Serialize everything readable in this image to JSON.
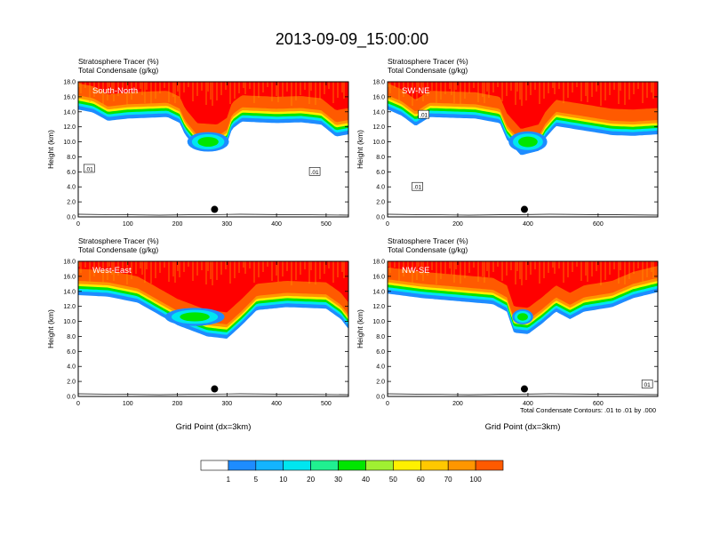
{
  "title": "2013-09-09_15:00:00",
  "colors": {
    "levels": [
      "#ffffff",
      "#1e8cff",
      "#14a0ff",
      "#00e6f0",
      "#20f090",
      "#00e600",
      "#a0f032",
      "#fff000",
      "#ffc800",
      "#ff9600",
      "#ff5a00",
      "#ff0000"
    ],
    "contour": "#000000",
    "marker": "#000000"
  },
  "colorbar": {
    "labels": [
      "1",
      "5",
      "10",
      "20",
      "30",
      "40",
      "50",
      "60",
      "70",
      "100"
    ]
  },
  "footnote": "Total Condensate Contours: .01 to .01 by .000",
  "chart_data": [
    {
      "type": "heatmap",
      "id": "south-north",
      "panel_label": "South-North",
      "subtitle_lines": [
        "Stratosphere Tracer   (%)",
        "Total Condensate   (g/kg)"
      ],
      "ylabel": "Height (km)",
      "xlabel": "",
      "xlim": [
        0,
        545
      ],
      "ylim": [
        0,
        18
      ],
      "xticks": [
        "0",
        "100",
        "200",
        "300",
        "400",
        "500"
      ],
      "yticks": [
        "0.0",
        "2.0",
        "4.0",
        "6.0",
        "8.0",
        "10.0",
        "12.0",
        "14.0",
        "16.0",
        "18.0"
      ],
      "marker": {
        "x": 275,
        "y": 1.0
      },
      "tropopause_base": [
        [
          0,
          14.8
        ],
        [
          30,
          14.4
        ],
        [
          60,
          13.3
        ],
        [
          100,
          13.6
        ],
        [
          180,
          13.8
        ],
        [
          205,
          13.0
        ],
        [
          215,
          11.5
        ],
        [
          240,
          9.5
        ],
        [
          280,
          9.3
        ],
        [
          300,
          10.2
        ],
        [
          310,
          12.2
        ],
        [
          330,
          13.2
        ],
        [
          400,
          13.0
        ],
        [
          450,
          13.1
        ],
        [
          490,
          12.8
        ],
        [
          520,
          11.2
        ],
        [
          545,
          11.5
        ]
      ],
      "cloud_lobe": {
        "x": 262,
        "y": 10.0,
        "rx": 42,
        "ry": 1.3
      },
      "contour_labels": [
        {
          "x": 22,
          "y": 6.4,
          "text": ".01"
        },
        {
          "x": 477,
          "y": 6.0,
          "text": ".01"
        }
      ]
    },
    {
      "type": "heatmap",
      "id": "sw-ne",
      "panel_label": "SW-NE",
      "subtitle_lines": [
        "Stratosphere Tracer   (%)",
        "Total Condensate   (g/kg)"
      ],
      "ylabel": "Height (km)",
      "xlabel": "",
      "xlim": [
        0,
        770
      ],
      "ylim": [
        0,
        18
      ],
      "xticks": [
        "0",
        "200",
        "400",
        "600"
      ],
      "yticks": [
        "0.0",
        "2.0",
        "4.0",
        "6.0",
        "8.0",
        "10.0",
        "12.0",
        "14.0",
        "16.0",
        "18.0"
      ],
      "marker": {
        "x": 390,
        "y": 1.0
      },
      "tropopause_base": [
        [
          0,
          14.8
        ],
        [
          40,
          14.0
        ],
        [
          80,
          12.6
        ],
        [
          120,
          13.8
        ],
        [
          250,
          13.6
        ],
        [
          320,
          13.0
        ],
        [
          340,
          10.8
        ],
        [
          380,
          8.7
        ],
        [
          430,
          9.3
        ],
        [
          450,
          11.0
        ],
        [
          480,
          12.6
        ],
        [
          560,
          12.0
        ],
        [
          640,
          11.4
        ],
        [
          700,
          11.3
        ],
        [
          770,
          11.5
        ]
      ],
      "cloud_lobe": {
        "x": 400,
        "y": 10.0,
        "rx": 55,
        "ry": 1.4
      },
      "contour_labels": [
        {
          "x": 103,
          "y": 13.6,
          "text": ".01"
        },
        {
          "x": 85,
          "y": 4.0,
          "text": ".01"
        }
      ]
    },
    {
      "type": "heatmap",
      "id": "west-east",
      "panel_label": "West-East",
      "subtitle_lines": [
        "Stratosphere Tracer   (%)",
        "Total Condensate   (g/kg)"
      ],
      "ylabel": "Height (km)",
      "xlabel": "Grid Point (dx=3km)",
      "xlim": [
        0,
        545
      ],
      "ylim": [
        0,
        18
      ],
      "xticks": [
        "0",
        "100",
        "200",
        "300",
        "400",
        "500"
      ],
      "yticks": [
        "0.0",
        "2.0",
        "4.0",
        "6.0",
        "8.0",
        "10.0",
        "12.0",
        "14.0",
        "16.0",
        "18.0"
      ],
      "marker": {
        "x": 275,
        "y": 1.0
      },
      "tropopause_base": [
        [
          0,
          14.0
        ],
        [
          60,
          13.8
        ],
        [
          120,
          13.0
        ],
        [
          160,
          11.5
        ],
        [
          200,
          10.0
        ],
        [
          260,
          8.5
        ],
        [
          300,
          8.2
        ],
        [
          330,
          10.0
        ],
        [
          360,
          12.0
        ],
        [
          420,
          12.4
        ],
        [
          500,
          12.2
        ],
        [
          530,
          10.8
        ],
        [
          545,
          9.5
        ]
      ],
      "cloud_lobe": {
        "x": 235,
        "y": 10.6,
        "rx": 60,
        "ry": 1.2
      },
      "contour_labels": []
    },
    {
      "type": "heatmap",
      "id": "nw-se",
      "panel_label": "NW-SE",
      "subtitle_lines": [
        "Stratosphere Tracer   (%)",
        "Total Condensate   (g/kg)"
      ],
      "ylabel": "Height (km)",
      "xlabel": "Grid Point (dx=3km)",
      "xlim": [
        0,
        770
      ],
      "ylim": [
        0,
        18
      ],
      "xticks": [
        "0",
        "200",
        "400",
        "600"
      ],
      "yticks": [
        "0.0",
        "2.0",
        "4.0",
        "6.0",
        "8.0",
        "10.0",
        "12.0",
        "14.0",
        "16.0",
        "18.0"
      ],
      "marker": {
        "x": 390,
        "y": 1.0
      },
      "tropopause_base": [
        [
          0,
          14.2
        ],
        [
          100,
          13.6
        ],
        [
          200,
          13.2
        ],
        [
          300,
          12.8
        ],
        [
          340,
          11.8
        ],
        [
          360,
          9.0
        ],
        [
          400,
          8.8
        ],
        [
          440,
          10.2
        ],
        [
          480,
          11.8
        ],
        [
          520,
          10.8
        ],
        [
          560,
          11.8
        ],
        [
          640,
          12.4
        ],
        [
          700,
          13.6
        ],
        [
          770,
          14.4
        ]
      ],
      "cloud_lobe": {
        "x": 385,
        "y": 10.6,
        "rx": 30,
        "ry": 1.0
      },
      "contour_labels": [
        {
          "x": 740,
          "y": 1.6,
          "text": "01"
        }
      ]
    }
  ]
}
